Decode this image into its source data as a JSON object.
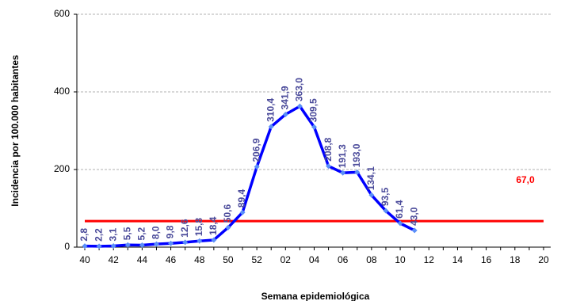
{
  "chart_data": {
    "type": "line",
    "x_label": "Semana epidemiológica",
    "y_label": "Incidencia por 100.000 habitantes",
    "categories": [
      "40",
      null,
      "42",
      null,
      "44",
      null,
      "46",
      null,
      "48",
      null,
      "50",
      null,
      "52",
      null,
      "02",
      null,
      "04",
      null,
      "06",
      null,
      "08",
      null,
      "10",
      null,
      "12",
      null,
      "14",
      null,
      "16",
      null,
      "18",
      null,
      "20"
    ],
    "series": [
      {
        "name": "Incidencia",
        "color": "#0000ff",
        "marker_color": "#5b8ff9",
        "label_color": "#4a4a9a",
        "values": [
          2.8,
          2.2,
          3.1,
          5.5,
          5.2,
          8.0,
          9.8,
          12.6,
          15.8,
          18.4,
          50.6,
          89.4,
          206.9,
          310.4,
          341.9,
          363.0,
          309.5,
          208.8,
          191.3,
          193.0,
          134.1,
          93.5,
          61.4,
          43.0,
          null,
          null,
          null,
          null,
          null,
          null,
          null,
          null,
          null
        ],
        "value_labels": [
          "2,8",
          "2,2",
          "3,1",
          "5,5",
          "5,2",
          "8,0",
          "9,8",
          "12,6",
          "15,8",
          "18,4",
          "50,6",
          "89,4",
          "206,9",
          "310,4",
          "341,9",
          "363,0",
          "309,5",
          "208,8",
          "191,3",
          "193,0",
          "134,1",
          "93,5",
          "61,4",
          "43,0",
          null,
          null,
          null,
          null,
          null,
          null,
          null,
          null,
          null
        ]
      }
    ],
    "threshold": {
      "value": 67.0,
      "label": "67,0",
      "color": "#ff0000"
    },
    "ylim": [
      0,
      600
    ],
    "yticks": [
      0,
      200,
      400,
      600
    ],
    "grid": true
  }
}
